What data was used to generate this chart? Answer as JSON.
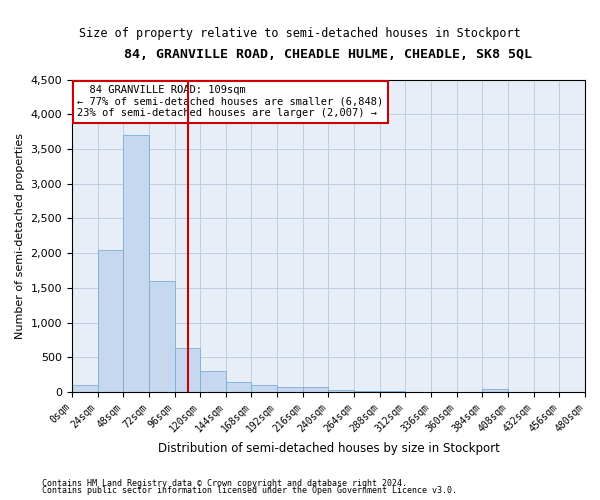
{
  "title": "84, GRANVILLE ROAD, CHEADLE HULME, CHEADLE, SK8 5QL",
  "subtitle": "Size of property relative to semi-detached houses in Stockport",
  "xlabel": "Distribution of semi-detached houses by size in Stockport",
  "ylabel": "Number of semi-detached properties",
  "footnote1": "Contains HM Land Registry data © Crown copyright and database right 2024.",
  "footnote2": "Contains public sector information licensed under the Open Government Licence v3.0.",
  "property_size": 109,
  "property_label": "84 GRANVILLE ROAD: 109sqm",
  "annotation_line1": "← 77% of semi-detached houses are smaller (6,848)",
  "annotation_line2": "23% of semi-detached houses are larger (2,007) →",
  "bar_color": "#c5d8f0",
  "bar_edge_color": "#7aafd4",
  "vline_color": "#cc0000",
  "annotation_box_edge": "#cc0000",
  "background_color": "#ffffff",
  "plot_bg_color": "#e8eef8",
  "grid_color": "#c0cce0",
  "bin_starts": [
    0,
    24,
    48,
    72,
    96,
    120,
    144,
    168,
    192,
    216,
    240,
    264,
    288,
    312,
    336,
    360,
    384,
    408,
    432,
    456
  ],
  "bin_counts": [
    100,
    2050,
    3700,
    1600,
    630,
    300,
    140,
    100,
    75,
    65,
    35,
    18,
    10,
    5,
    0,
    0,
    40,
    0,
    0,
    0
  ],
  "bin_width": 24,
  "xlim": [
    0,
    480
  ],
  "ylim": [
    0,
    4500
  ],
  "yticks": [
    0,
    500,
    1000,
    1500,
    2000,
    2500,
    3000,
    3500,
    4000,
    4500
  ]
}
